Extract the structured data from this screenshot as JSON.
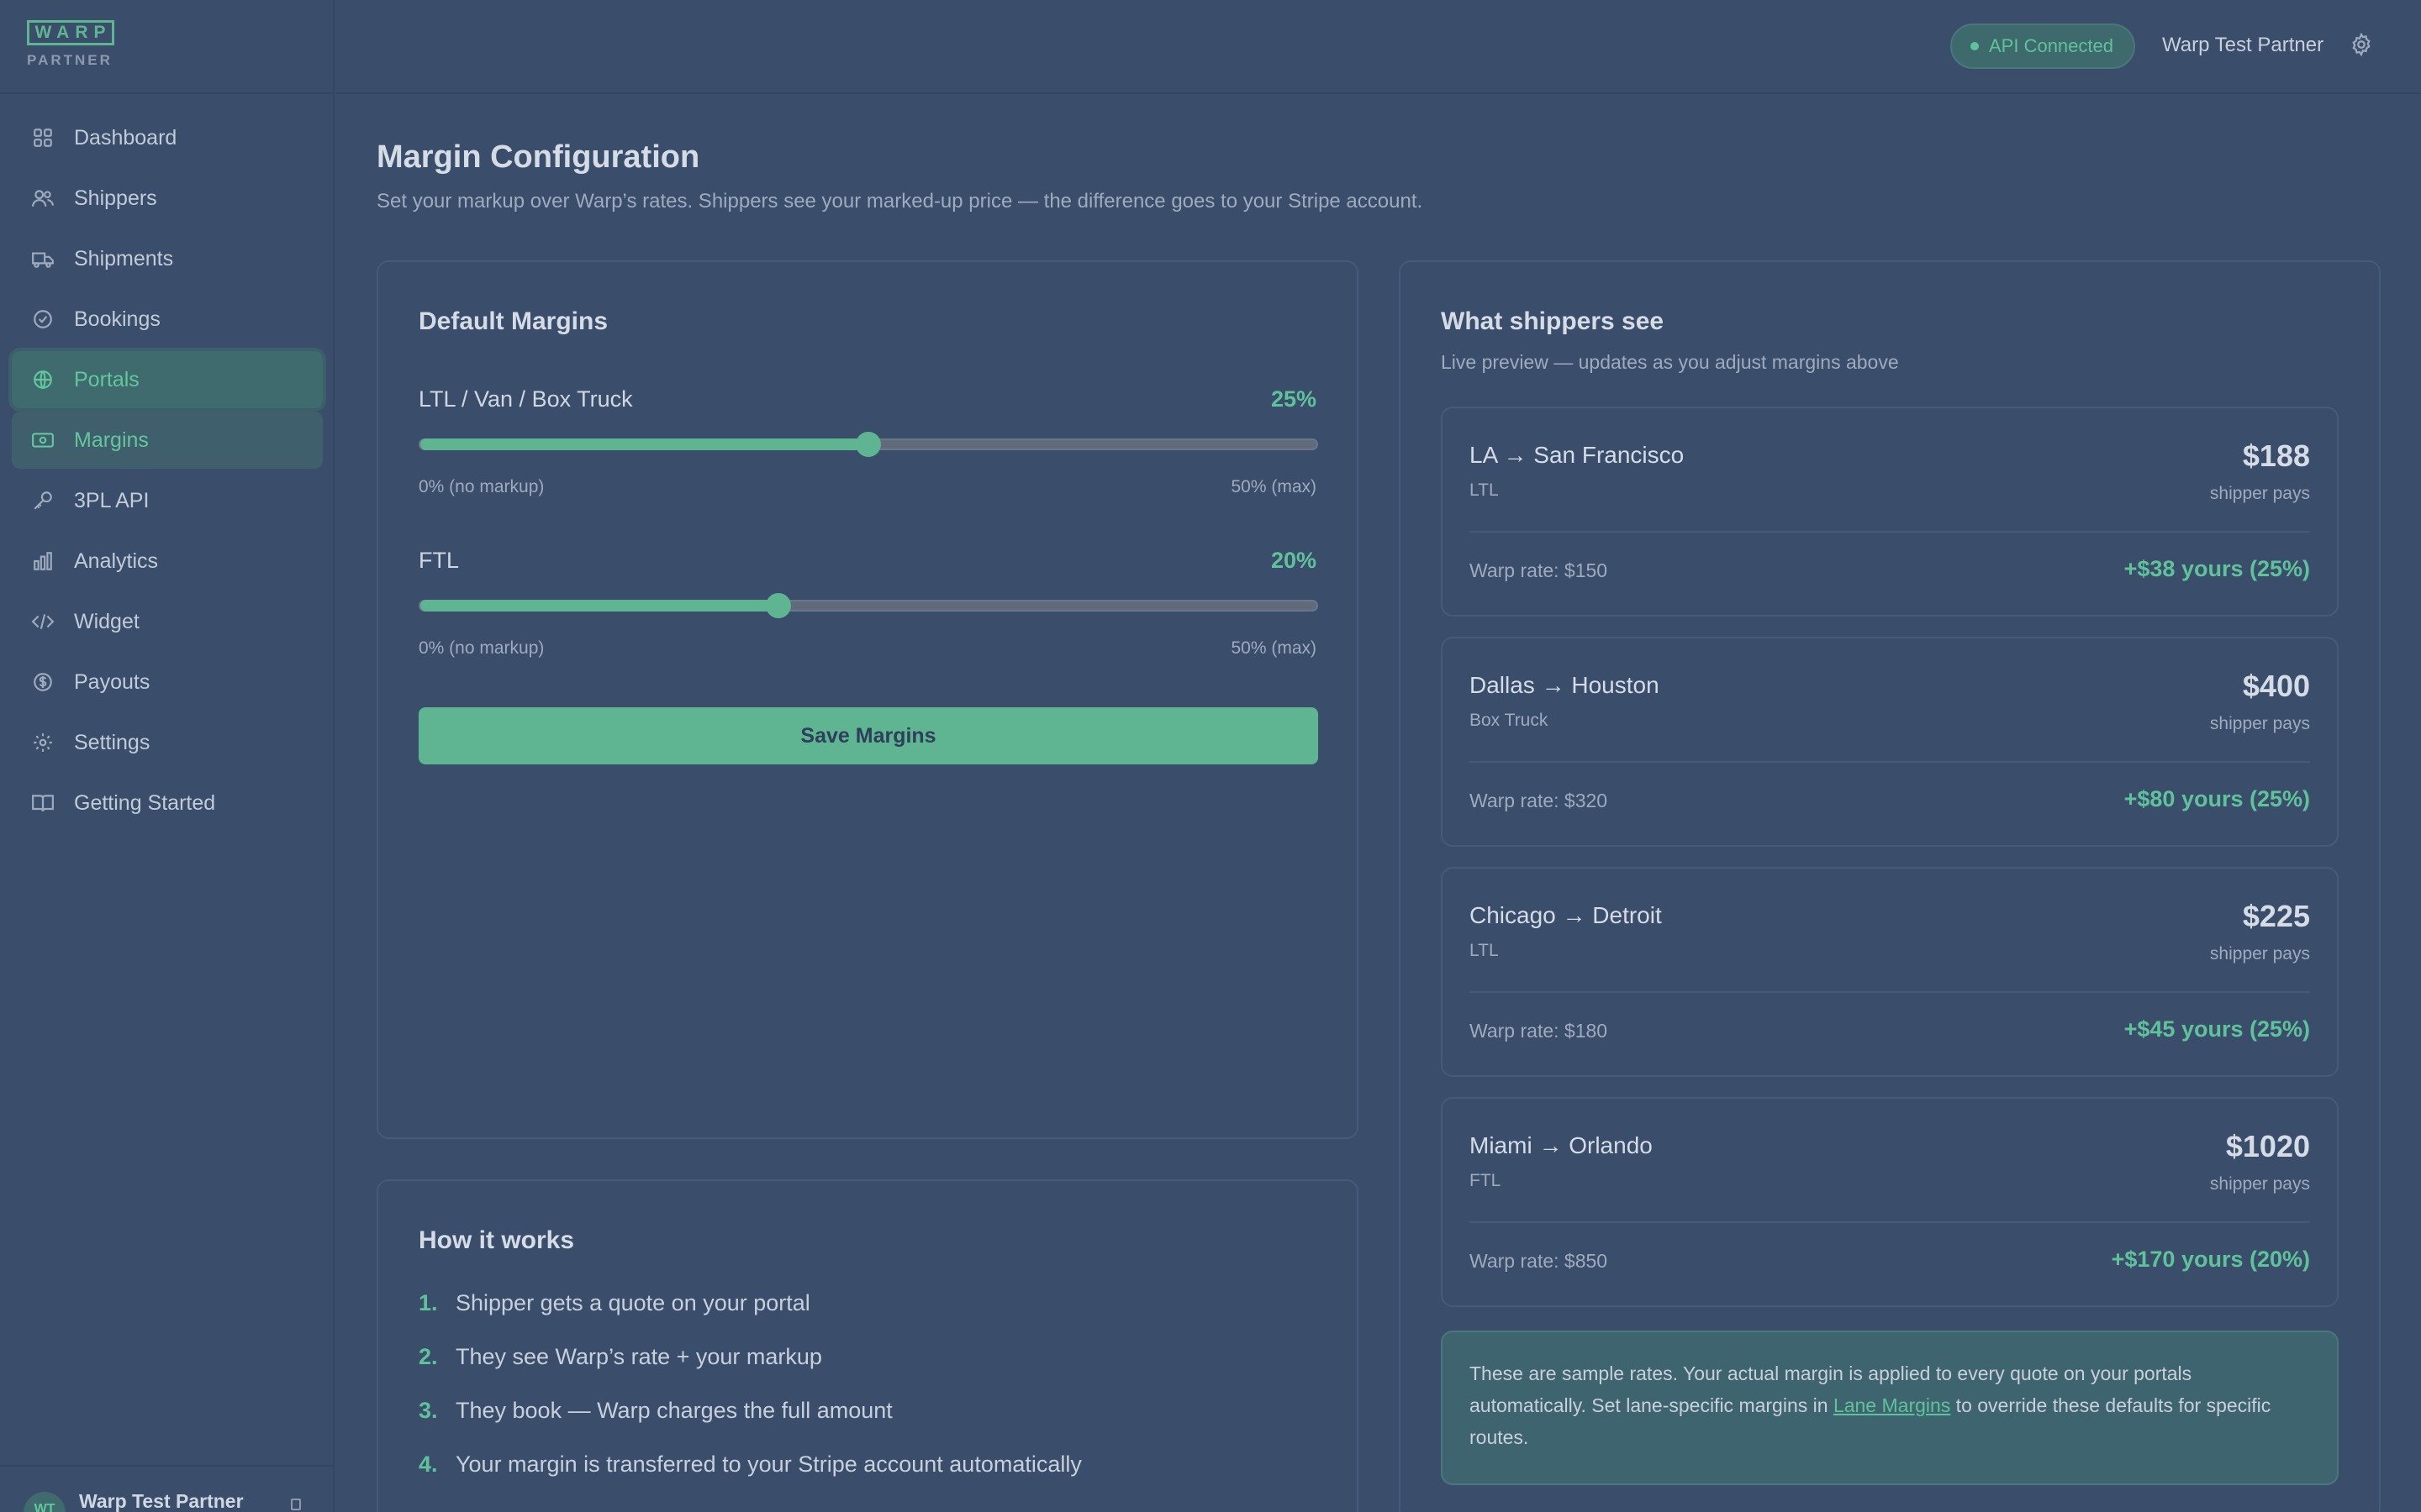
{
  "brand": {
    "logo": "WARP",
    "sub": "PARTNER"
  },
  "sidebar": {
    "items": [
      {
        "label": "Dashboard",
        "icon": "grid-icon"
      },
      {
        "label": "Shippers",
        "icon": "users-icon"
      },
      {
        "label": "Shipments",
        "icon": "truck-icon"
      },
      {
        "label": "Bookings",
        "icon": "check-circle-icon"
      },
      {
        "label": "Portals",
        "icon": "globe-icon"
      },
      {
        "label": "Margins",
        "icon": "banknote-icon"
      },
      {
        "label": "3PL API",
        "icon": "key-icon"
      },
      {
        "label": "Analytics",
        "icon": "bar-chart-icon"
      },
      {
        "label": "Widget",
        "icon": "code-icon"
      },
      {
        "label": "Payouts",
        "icon": "dollar-circle-icon"
      },
      {
        "label": "Settings",
        "icon": "gear-icon"
      },
      {
        "label": "Getting Started",
        "icon": "book-icon"
      }
    ],
    "user": {
      "initials": "WT",
      "name": "Warp Test Partner"
    }
  },
  "header": {
    "api_status": "API Connected",
    "partner_name": "Warp Test Partner"
  },
  "page": {
    "title": "Margin Configuration",
    "subtitle": "Set your markup over Warp’s rates. Shippers see your marked-up price — the difference goes to your Stripe account."
  },
  "margins": {
    "title": "Default Margins",
    "rows": [
      {
        "label": "LTL / Van / Box Truck",
        "pct_text": "25%",
        "value": 25,
        "min_label": "0% (no markup)",
        "max_label": "50% (max)"
      },
      {
        "label": "FTL",
        "pct_text": "20%",
        "value": 20,
        "min_label": "0% (no markup)",
        "max_label": "50% (max)"
      }
    ],
    "max": 50,
    "save_label": "Save Margins"
  },
  "how": {
    "title": "How it works",
    "steps": [
      {
        "num": "1.",
        "text": "Shipper gets a quote on your portal"
      },
      {
        "num": "2.",
        "text": "They see Warp’s rate + your markup"
      },
      {
        "num": "3.",
        "text": "They book — Warp charges the full amount"
      },
      {
        "num": "4.",
        "text": "Your margin is transferred to your Stripe account automatically"
      }
    ]
  },
  "preview": {
    "title": "What shippers see",
    "subtitle": "Live preview — updates as you adjust margins above",
    "routes": [
      {
        "name": "LA → San Francisco",
        "type": "LTL",
        "price": "$188",
        "pays": "shipper pays",
        "warp": "Warp rate: $150",
        "yours": "+$38 yours (25%)"
      },
      {
        "name": "Dallas → Houston",
        "type": "Box Truck",
        "price": "$400",
        "pays": "shipper pays",
        "warp": "Warp rate: $320",
        "yours": "+$80 yours (25%)"
      },
      {
        "name": "Chicago → Detroit",
        "type": "LTL",
        "price": "$225",
        "pays": "shipper pays",
        "warp": "Warp rate: $180",
        "yours": "+$45 yours (25%)"
      },
      {
        "name": "Miami → Orlando",
        "type": "FTL",
        "price": "$1020",
        "pays": "shipper pays",
        "warp": "Warp rate: $850",
        "yours": "+$170 yours (20%)"
      }
    ],
    "note_before": "These are sample rates. Your actual margin is applied to every quote on your portals automatically. Set lane-specific margins in ",
    "note_link": "Lane Margins",
    "note_after": " to override these defaults for specific routes."
  }
}
